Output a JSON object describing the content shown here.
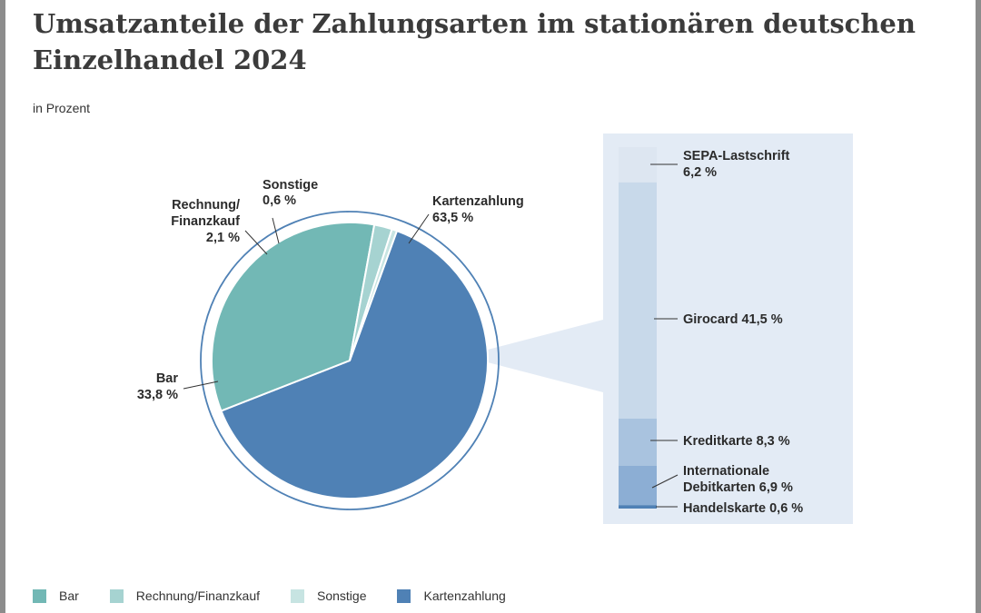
{
  "title": "Umsatzanteile der Zahlungsarten im stationären deutschen Einzelhandel 2024",
  "subtitle": "in Prozent",
  "chart_data": [
    {
      "type": "pie",
      "slices": [
        {
          "name": "Kartenzahlung",
          "label_line1": "Kartenzahlung",
          "label_line2": "63,5 %",
          "value": 63.5,
          "color": "#4f81b5"
        },
        {
          "name": "Bar",
          "label_line1": "Bar",
          "label_line2": "33,8 %",
          "value": 33.8,
          "color": "#72b8b5"
        },
        {
          "name": "Rechnung/Finanzkauf",
          "label_line1": "Rechnung/",
          "label_line2": "Finanzkauf",
          "label_line3": "2,1 %",
          "value": 2.1,
          "color": "#a6d3d1"
        },
        {
          "name": "Sonstige",
          "label_line1": "Sonstige",
          "label_line2": "0,6 %",
          "value": 0.6,
          "color": "#c7e4e2"
        }
      ]
    },
    {
      "type": "bar",
      "stacked": true,
      "breakdown_of": "Kartenzahlung",
      "segments": [
        {
          "name": "SEPA-Lastschrift",
          "label_line1": "SEPA-Lastschrift",
          "label_line2": "6,2 %",
          "value": 6.2,
          "color": "#dde6f1"
        },
        {
          "name": "Girocard",
          "label": "Girocard 41,5 %",
          "value": 41.5,
          "color": "#c8d9ea"
        },
        {
          "name": "Kreditkarte",
          "label": "Kreditkarte 8,3 %",
          "value": 8.3,
          "color": "#a9c3df"
        },
        {
          "name": "Internationale Debitkarten",
          "label_line1": "Internationale",
          "label_line2": "Debitkarten 6,9 %",
          "value": 6.9,
          "color": "#8caed4"
        },
        {
          "name": "Handelskarte",
          "label": "Handelskarte 0,6 %",
          "value": 0.6,
          "color": "#4f81b5"
        }
      ]
    }
  ],
  "legend": [
    {
      "label": "Bar",
      "color": "#72b8b5"
    },
    {
      "label": "Rechnung/Finanzkauf",
      "color": "#a6d3d1"
    },
    {
      "label": "Sonstige",
      "color": "#c7e4e2"
    },
    {
      "label": "Kartenzahlung",
      "color": "#4f81b5"
    }
  ]
}
